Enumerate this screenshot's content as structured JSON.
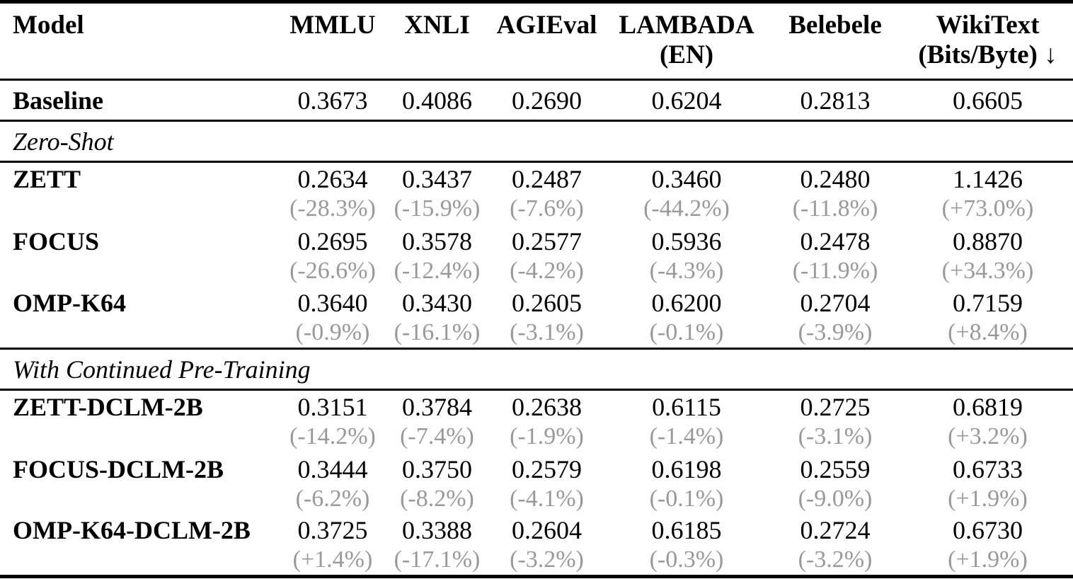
{
  "page": {
    "background": "#ffffff",
    "text_color": "#000000",
    "delta_color": "#999999"
  },
  "table": {
    "header": {
      "model": "Model",
      "cols": [
        {
          "line1": "MMLU",
          "line2": ""
        },
        {
          "line1": "XNLI",
          "line2": ""
        },
        {
          "line1": "AGIEval",
          "line2": ""
        },
        {
          "line1": "LAMBADA",
          "line2": "(EN)"
        },
        {
          "line1": "Belebele",
          "line2": ""
        },
        {
          "line1": "WikiText",
          "line2": "(Bits/Byte) ↓"
        }
      ]
    },
    "baseline": {
      "label": "Baseline",
      "values": [
        "0.3673",
        "0.4086",
        "0.2690",
        "0.6204",
        "0.2813",
        "0.6605"
      ]
    },
    "sections": [
      {
        "title": "Zero-Shot",
        "rows": [
          {
            "label": "ZETT",
            "values": [
              "0.2634",
              "0.3437",
              "0.2487",
              "0.3460",
              "0.2480",
              "1.1426"
            ],
            "deltas": [
              "(-28.3%)",
              "(-15.9%)",
              "(-7.6%)",
              "(-44.2%)",
              "(-11.8%)",
              "(+73.0%)"
            ]
          },
          {
            "label": "FOCUS",
            "values": [
              "0.2695",
              "0.3578",
              "0.2577",
              "0.5936",
              "0.2478",
              "0.8870"
            ],
            "deltas": [
              "(-26.6%)",
              "(-12.4%)",
              "(-4.2%)",
              "(-4.3%)",
              "(-11.9%)",
              "(+34.3%)"
            ]
          },
          {
            "label": "OMP-K64",
            "values": [
              "0.3640",
              "0.3430",
              "0.2605",
              "0.6200",
              "0.2704",
              "0.7159"
            ],
            "deltas": [
              "(-0.9%)",
              "(-16.1%)",
              "(-3.1%)",
              "(-0.1%)",
              "(-3.9%)",
              "(+8.4%)"
            ]
          }
        ]
      },
      {
        "title": "With Continued Pre-Training",
        "rows": [
          {
            "label": "ZETT-DCLM-2B",
            "values": [
              "0.3151",
              "0.3784",
              "0.2638",
              "0.6115",
              "0.2725",
              "0.6819"
            ],
            "deltas": [
              "(-14.2%)",
              "(-7.4%)",
              "(-1.9%)",
              "(-1.4%)",
              "(-3.1%)",
              "(+3.2%)"
            ]
          },
          {
            "label": "FOCUS-DCLM-2B",
            "values": [
              "0.3444",
              "0.3750",
              "0.2579",
              "0.6198",
              "0.2559",
              "0.6733"
            ],
            "deltas": [
              "(-6.2%)",
              "(-8.2%)",
              "(-4.1%)",
              "(-0.1%)",
              "(-9.0%)",
              "(+1.9%)"
            ]
          },
          {
            "label": "OMP-K64-DCLM-2B",
            "values": [
              "0.3725",
              "0.3388",
              "0.2604",
              "0.6185",
              "0.2724",
              "0.6730"
            ],
            "deltas": [
              "(+1.4%)",
              "(-17.1%)",
              "(-3.2%)",
              "(-0.3%)",
              "(-3.2%)",
              "(+1.9%)"
            ]
          }
        ]
      }
    ]
  }
}
